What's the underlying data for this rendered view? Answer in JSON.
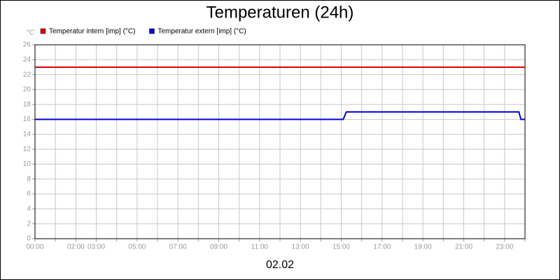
{
  "chart_data": {
    "type": "line",
    "title": "Temperaturen (24h)",
    "y_unit": "°C",
    "x_label": "02.02",
    "x": [
      0,
      15.1,
      15.25,
      23.7,
      23.8,
      24
    ],
    "series": [
      {
        "name": "Temperatur intern [imp] (°C)",
        "color": "#dd0000",
        "values": [
          23,
          23,
          23,
          23,
          23,
          23
        ]
      },
      {
        "name": "Temperatur extern [imp] (°C)",
        "color": "#0000dd",
        "values": [
          16,
          16,
          17,
          17,
          16,
          16
        ]
      }
    ],
    "xlim": [
      0,
      24
    ],
    "xticks": [
      {
        "value": 0,
        "label": "00:00"
      },
      {
        "value": 1,
        "label": null
      },
      {
        "value": 2,
        "label": "02:00"
      },
      {
        "value": 3,
        "label": "03:00"
      },
      {
        "value": 4,
        "label": null
      },
      {
        "value": 5,
        "label": "05:00"
      },
      {
        "value": 6,
        "label": null
      },
      {
        "value": 7,
        "label": "07:00"
      },
      {
        "value": 8,
        "label": null
      },
      {
        "value": 9,
        "label": "09:00"
      },
      {
        "value": 10,
        "label": null
      },
      {
        "value": 11,
        "label": "11:00"
      },
      {
        "value": 12,
        "label": null
      },
      {
        "value": 13,
        "label": "13:00"
      },
      {
        "value": 14,
        "label": null
      },
      {
        "value": 15,
        "label": "15:00"
      },
      {
        "value": 16,
        "label": null
      },
      {
        "value": 17,
        "label": "17:00"
      },
      {
        "value": 18,
        "label": null
      },
      {
        "value": 19,
        "label": "19:00"
      },
      {
        "value": 20,
        "label": null
      },
      {
        "value": 21,
        "label": "21:00"
      },
      {
        "value": 22,
        "label": null
      },
      {
        "value": 23,
        "label": "23:00"
      },
      {
        "value": 24,
        "label": null
      }
    ],
    "ylim": [
      0,
      26
    ],
    "yticks": [
      0,
      2,
      4,
      6,
      8,
      10,
      12,
      14,
      16,
      18,
      20,
      22,
      24,
      26
    ],
    "grid": true
  }
}
